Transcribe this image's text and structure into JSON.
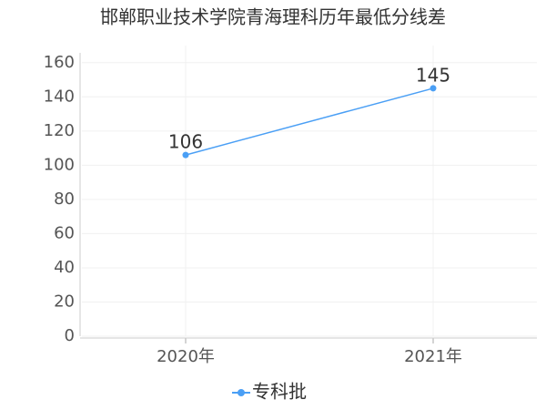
{
  "chart_data": {
    "type": "line",
    "title": "邯郸职业技术学院青海理科历年最低分线差",
    "categories": [
      "2020年",
      "2021年"
    ],
    "series": [
      {
        "name": "专科批",
        "color": "#4a9ff5",
        "values": [
          106,
          145
        ]
      }
    ],
    "ylim": [
      0,
      170
    ],
    "yticks": [
      0,
      20,
      40,
      60,
      80,
      100,
      120,
      140,
      160
    ],
    "grid": true,
    "legend": "bottom"
  }
}
